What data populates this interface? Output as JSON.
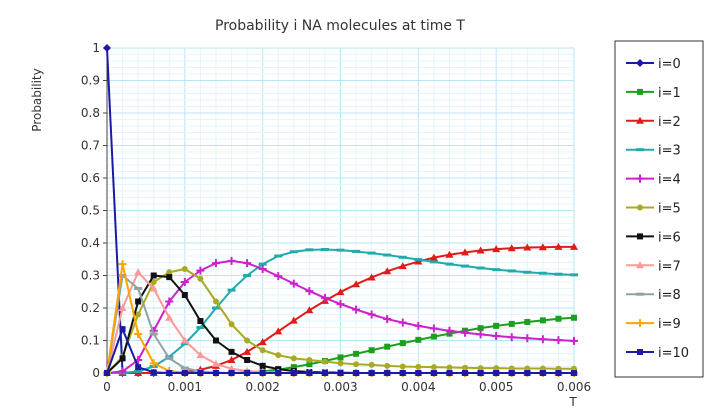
{
  "chart_data": {
    "type": "line",
    "title": "Probability i NA molecules at time T",
    "xlabel": "T",
    "ylabel": "Probability",
    "xlim": [
      0,
      0.006
    ],
    "ylim": [
      0,
      1
    ],
    "x_ticks": [
      "0",
      "0.001",
      "0.002",
      "0.003",
      "0.004",
      "0.005",
      "0.006"
    ],
    "y_ticks": [
      "0",
      "0.1",
      "0.2",
      "0.3",
      "0.4",
      "0.5",
      "0.6",
      "0.7",
      "0.8",
      "0.9",
      "1"
    ],
    "grid": true,
    "legend_position": "right",
    "x": [
      0,
      0.0002,
      0.0004,
      0.0006,
      0.0008,
      0.001,
      0.0012,
      0.0014,
      0.0016,
      0.0018,
      0.002,
      0.0022,
      0.0024,
      0.0026,
      0.0028,
      0.003,
      0.0032,
      0.0034,
      0.0036,
      0.0038,
      0.004,
      0.0042,
      0.0044,
      0.0046,
      0.0048,
      0.005,
      0.0052,
      0.0054,
      0.0056,
      0.0058,
      0.006
    ],
    "series": [
      {
        "name": "i=0",
        "color": "#1a1aa6",
        "marker": "diamond",
        "values": [
          1,
          0,
          0,
          0,
          0,
          0,
          0,
          0,
          0,
          0,
          0,
          0,
          0,
          0,
          0,
          0,
          0,
          0,
          0,
          0,
          0,
          0,
          0,
          0,
          0,
          0,
          0,
          0,
          0,
          0,
          0
        ]
      },
      {
        "name": "i=1",
        "color": "#1e9e1e",
        "marker": "square",
        "values": [
          0,
          0,
          0,
          0,
          0,
          0,
          0,
          0,
          0,
          0.002,
          0.005,
          0.01,
          0.018,
          0.027,
          0.037,
          0.048,
          0.059,
          0.07,
          0.081,
          0.092,
          0.102,
          0.112,
          0.121,
          0.13,
          0.138,
          0.145,
          0.151,
          0.157,
          0.162,
          0.167,
          0.17
        ]
      },
      {
        "name": "i=2",
        "color": "#e31a1a",
        "marker": "triangle",
        "values": [
          0,
          0,
          0,
          0,
          0,
          0.003,
          0.01,
          0.022,
          0.04,
          0.065,
          0.095,
          0.128,
          0.161,
          0.193,
          0.222,
          0.249,
          0.273,
          0.294,
          0.313,
          0.329,
          0.343,
          0.355,
          0.364,
          0.371,
          0.377,
          0.381,
          0.384,
          0.386,
          0.387,
          0.388,
          0.388
        ]
      },
      {
        "name": "i=3",
        "color": "#22aaaa",
        "marker": "dash",
        "values": [
          0,
          0,
          0.005,
          0.02,
          0.05,
          0.09,
          0.14,
          0.2,
          0.255,
          0.3,
          0.335,
          0.36,
          0.373,
          0.379,
          0.38,
          0.378,
          0.374,
          0.369,
          0.363,
          0.356,
          0.349,
          0.342,
          0.335,
          0.329,
          0.323,
          0.318,
          0.314,
          0.31,
          0.307,
          0.304,
          0.302
        ]
      },
      {
        "name": "i=4",
        "color": "#cc22cc",
        "marker": "plus",
        "values": [
          0,
          0.005,
          0.04,
          0.13,
          0.22,
          0.28,
          0.315,
          0.338,
          0.345,
          0.338,
          0.32,
          0.298,
          0.275,
          0.252,
          0.231,
          0.212,
          0.195,
          0.18,
          0.166,
          0.155,
          0.145,
          0.137,
          0.13,
          0.124,
          0.119,
          0.114,
          0.11,
          0.107,
          0.104,
          0.101,
          0.099
        ]
      },
      {
        "name": "i=5",
        "color": "#aaaa22",
        "marker": "circle",
        "values": [
          0,
          0.05,
          0.18,
          0.28,
          0.31,
          0.32,
          0.29,
          0.22,
          0.15,
          0.1,
          0.07,
          0.055,
          0.045,
          0.04,
          0.035,
          0.03,
          0.027,
          0.025,
          0.022,
          0.02,
          0.019,
          0.018,
          0.017,
          0.016,
          0.015,
          0.015,
          0.014,
          0.014,
          0.014,
          0.013,
          0.013
        ]
      },
      {
        "name": "i=6",
        "color": "#111111",
        "marker": "square",
        "values": [
          0,
          0.045,
          0.22,
          0.3,
          0.295,
          0.24,
          0.16,
          0.1,
          0.065,
          0.04,
          0.022,
          0.012,
          0.006,
          0.003,
          0.002,
          0.001,
          0,
          0,
          0,
          0,
          0,
          0,
          0,
          0,
          0,
          0,
          0,
          0,
          0,
          0,
          0
        ]
      },
      {
        "name": "i=7",
        "color": "#ff9999",
        "marker": "triangle",
        "values": [
          0,
          0.2,
          0.31,
          0.26,
          0.17,
          0.1,
          0.055,
          0.028,
          0.013,
          0.006,
          0.003,
          0.001,
          0,
          0,
          0,
          0,
          0,
          0,
          0,
          0,
          0,
          0,
          0,
          0,
          0,
          0,
          0,
          0,
          0,
          0,
          0
        ]
      },
      {
        "name": "i=8",
        "color": "#8fa3a3",
        "marker": "dash",
        "values": [
          0,
          0.3,
          0.26,
          0.12,
          0.045,
          0.015,
          0.005,
          0.001,
          0,
          0,
          0,
          0,
          0,
          0,
          0,
          0,
          0,
          0,
          0,
          0,
          0,
          0,
          0,
          0,
          0,
          0,
          0,
          0,
          0,
          0,
          0
        ]
      },
      {
        "name": "i=9",
        "color": "#ffa500",
        "marker": "plus",
        "values": [
          0,
          0.335,
          0.12,
          0.03,
          0.006,
          0.001,
          0,
          0,
          0,
          0,
          0,
          0,
          0,
          0,
          0,
          0,
          0,
          0,
          0,
          0,
          0,
          0,
          0,
          0,
          0,
          0,
          0,
          0,
          0,
          0,
          0
        ]
      },
      {
        "name": "i=10",
        "color": "#1a1aa6",
        "marker": "square",
        "values": [
          0,
          0.135,
          0.018,
          0.002,
          0,
          0,
          0,
          0,
          0,
          0,
          0,
          0,
          0,
          0,
          0,
          0,
          0,
          0,
          0,
          0,
          0,
          0,
          0,
          0,
          0,
          0,
          0,
          0,
          0,
          0,
          0
        ]
      }
    ]
  }
}
